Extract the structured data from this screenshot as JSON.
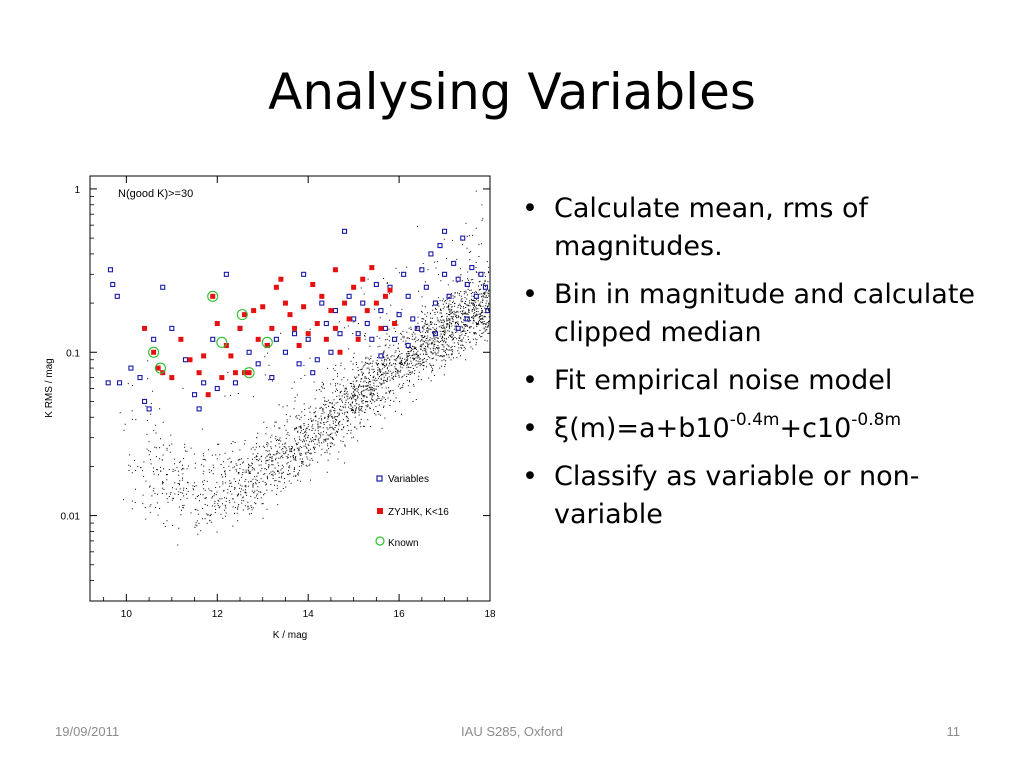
{
  "slide": {
    "title": "Analysing Variables",
    "bullets": [
      {
        "text": "Calculate mean, rms of magnitudes."
      },
      {
        "text": "Bin in magnitude and calculate clipped median"
      },
      {
        "text": "Fit empirical noise model"
      },
      {
        "formula": {
          "sym": "ξ",
          "a": "(m)=a+b10",
          "e1": "-0.4m",
          "b": "+c10",
          "e2": "-0.8m"
        }
      },
      {
        "text": "Classify as variable or non-variable"
      }
    ],
    "footer": {
      "date": "19/09/2011",
      "event": "IAU S285, Oxford",
      "page": "11"
    }
  },
  "chart_data": {
    "type": "scatter",
    "title": "",
    "annotation": "N(good K)>=30",
    "xlabel": "K / mag",
    "ylabel": "K RMS / mag",
    "xlim": [
      9.2,
      18
    ],
    "ylim": [
      0.003,
      1.2
    ],
    "yscale": "log",
    "xticks": [
      10,
      12,
      14,
      16,
      18
    ],
    "xtick_labels": [
      "10",
      "12",
      "14",
      "16",
      "18"
    ],
    "yticks": [
      0.01,
      0.1,
      1
    ],
    "ytick_labels": [
      "0.01",
      "0.1",
      "1"
    ],
    "grid": false,
    "legend_position": "bottom-right",
    "legend": [
      {
        "label": "Variables",
        "marker": "open-square",
        "color": "#1a1aa8"
      },
      {
        "label": "ZYJHK, K<16",
        "marker": "filled-square",
        "color": "#e61010"
      },
      {
        "label": "Known",
        "marker": "open-circle",
        "color": "#2ec02e"
      }
    ],
    "series": [
      {
        "name": "Variables",
        "marker": "open-square",
        "color": "#1a1aa8",
        "points": [
          [
            9.6,
            0.065
          ],
          [
            9.65,
            0.32
          ],
          [
            9.7,
            0.26
          ],
          [
            9.8,
            0.22
          ],
          [
            9.85,
            0.065
          ],
          [
            10.1,
            0.08
          ],
          [
            10.3,
            0.07
          ],
          [
            10.4,
            0.05
          ],
          [
            10.5,
            0.045
          ],
          [
            10.8,
            0.25
          ],
          [
            11.0,
            0.14
          ],
          [
            11.3,
            0.09
          ],
          [
            11.5,
            0.055
          ],
          [
            11.7,
            0.065
          ],
          [
            11.9,
            0.12
          ],
          [
            12.2,
            0.3
          ],
          [
            12.5,
            0.14
          ],
          [
            12.7,
            0.1
          ],
          [
            12.9,
            0.085
          ],
          [
            13.1,
            0.11
          ],
          [
            13.3,
            0.12
          ],
          [
            13.5,
            0.1
          ],
          [
            13.7,
            0.13
          ],
          [
            13.8,
            0.085
          ],
          [
            14.0,
            0.12
          ],
          [
            14.2,
            0.09
          ],
          [
            14.3,
            0.2
          ],
          [
            14.4,
            0.15
          ],
          [
            14.5,
            0.1
          ],
          [
            14.6,
            0.18
          ],
          [
            14.7,
            0.13
          ],
          [
            14.8,
            0.55
          ],
          [
            14.9,
            0.22
          ],
          [
            15.0,
            0.16
          ],
          [
            15.1,
            0.13
          ],
          [
            15.2,
            0.2
          ],
          [
            15.3,
            0.15
          ],
          [
            15.4,
            0.12
          ],
          [
            15.5,
            0.26
          ],
          [
            15.6,
            0.18
          ],
          [
            15.7,
            0.14
          ],
          [
            15.8,
            0.25
          ],
          [
            15.9,
            0.12
          ],
          [
            16.0,
            0.17
          ],
          [
            16.1,
            0.3
          ],
          [
            16.2,
            0.22
          ],
          [
            16.3,
            0.16
          ],
          [
            16.4,
            0.14
          ],
          [
            16.5,
            0.32
          ],
          [
            16.6,
            0.25
          ],
          [
            16.7,
            0.4
          ],
          [
            16.8,
            0.2
          ],
          [
            16.9,
            0.45
          ],
          [
            17.0,
            0.3
          ],
          [
            17.1,
            0.22
          ],
          [
            17.2,
            0.35
          ],
          [
            17.3,
            0.28
          ],
          [
            17.4,
            0.5
          ],
          [
            17.5,
            0.26
          ],
          [
            17.6,
            0.33
          ],
          [
            17.7,
            0.22
          ],
          [
            17.8,
            0.3
          ],
          [
            17.9,
            0.25
          ],
          [
            17.95,
            0.18
          ],
          [
            17.5,
            0.16
          ],
          [
            17.3,
            0.14
          ],
          [
            16.8,
            0.13
          ],
          [
            16.2,
            0.11
          ],
          [
            15.6,
            0.095
          ],
          [
            13.9,
            0.3
          ],
          [
            12.0,
            0.06
          ],
          [
            12.4,
            0.065
          ],
          [
            13.2,
            0.07
          ],
          [
            14.1,
            0.075
          ],
          [
            10.6,
            0.12
          ],
          [
            11.6,
            0.045
          ],
          [
            17.0,
            0.55
          ]
        ]
      },
      {
        "name": "ZYJHK, K<16",
        "marker": "filled-square",
        "color": "#e61010",
        "points": [
          [
            10.4,
            0.14
          ],
          [
            10.6,
            0.1
          ],
          [
            10.7,
            0.08
          ],
          [
            10.8,
            0.075
          ],
          [
            11.2,
            0.12
          ],
          [
            11.4,
            0.09
          ],
          [
            11.6,
            0.075
          ],
          [
            11.8,
            0.055
          ],
          [
            11.9,
            0.22
          ],
          [
            12.0,
            0.15
          ],
          [
            12.2,
            0.11
          ],
          [
            12.3,
            0.095
          ],
          [
            12.4,
            0.075
          ],
          [
            12.6,
            0.17
          ],
          [
            12.7,
            0.075
          ],
          [
            12.8,
            0.18
          ],
          [
            12.9,
            0.12
          ],
          [
            13.0,
            0.19
          ],
          [
            13.1,
            0.11
          ],
          [
            13.2,
            0.14
          ],
          [
            13.3,
            0.25
          ],
          [
            13.5,
            0.2
          ],
          [
            13.6,
            0.17
          ],
          [
            13.7,
            0.14
          ],
          [
            13.9,
            0.19
          ],
          [
            14.0,
            0.13
          ],
          [
            14.2,
            0.15
          ],
          [
            14.3,
            0.22
          ],
          [
            14.4,
            0.12
          ],
          [
            14.5,
            0.18
          ],
          [
            14.6,
            0.14
          ],
          [
            14.7,
            0.1
          ],
          [
            14.8,
            0.2
          ],
          [
            14.9,
            0.16
          ],
          [
            15.0,
            0.25
          ],
          [
            15.1,
            0.12
          ],
          [
            15.3,
            0.18
          ],
          [
            15.4,
            0.33
          ],
          [
            15.5,
            0.2
          ],
          [
            15.6,
            0.14
          ],
          [
            15.8,
            0.24
          ],
          [
            15.9,
            0.15
          ],
          [
            13.4,
            0.28
          ],
          [
            12.5,
            0.14
          ],
          [
            11.0,
            0.07
          ],
          [
            12.1,
            0.07
          ],
          [
            14.1,
            0.26
          ],
          [
            15.2,
            0.28
          ],
          [
            13.8,
            0.11
          ],
          [
            14.6,
            0.32
          ],
          [
            15.7,
            0.22
          ],
          [
            12.6,
            0.075
          ],
          [
            11.7,
            0.095
          ]
        ]
      },
      {
        "name": "Known",
        "marker": "open-circle",
        "color": "#2ec02e",
        "points": [
          [
            10.6,
            0.1
          ],
          [
            10.75,
            0.08
          ],
          [
            11.9,
            0.22
          ],
          [
            12.1,
            0.115
          ],
          [
            12.55,
            0.17
          ],
          [
            12.7,
            0.075
          ],
          [
            13.1,
            0.115
          ]
        ]
      }
    ],
    "background_distribution": {
      "marker": "dot",
      "color": "#000000",
      "description": "dense cloud of all stars",
      "median_curve": [
        [
          9.8,
          0.03
        ],
        [
          10.5,
          0.02
        ],
        [
          11.0,
          0.016
        ],
        [
          11.5,
          0.0145
        ],
        [
          12.0,
          0.0145
        ],
        [
          12.5,
          0.016
        ],
        [
          13.0,
          0.019
        ],
        [
          13.5,
          0.024
        ],
        [
          14.0,
          0.03
        ],
        [
          14.5,
          0.04
        ],
        [
          15.0,
          0.052
        ],
        [
          15.5,
          0.068
        ],
        [
          16.0,
          0.088
        ],
        [
          16.5,
          0.11
        ],
        [
          17.0,
          0.14
        ],
        [
          17.5,
          0.17
        ],
        [
          18.0,
          0.19
        ]
      ]
    }
  }
}
